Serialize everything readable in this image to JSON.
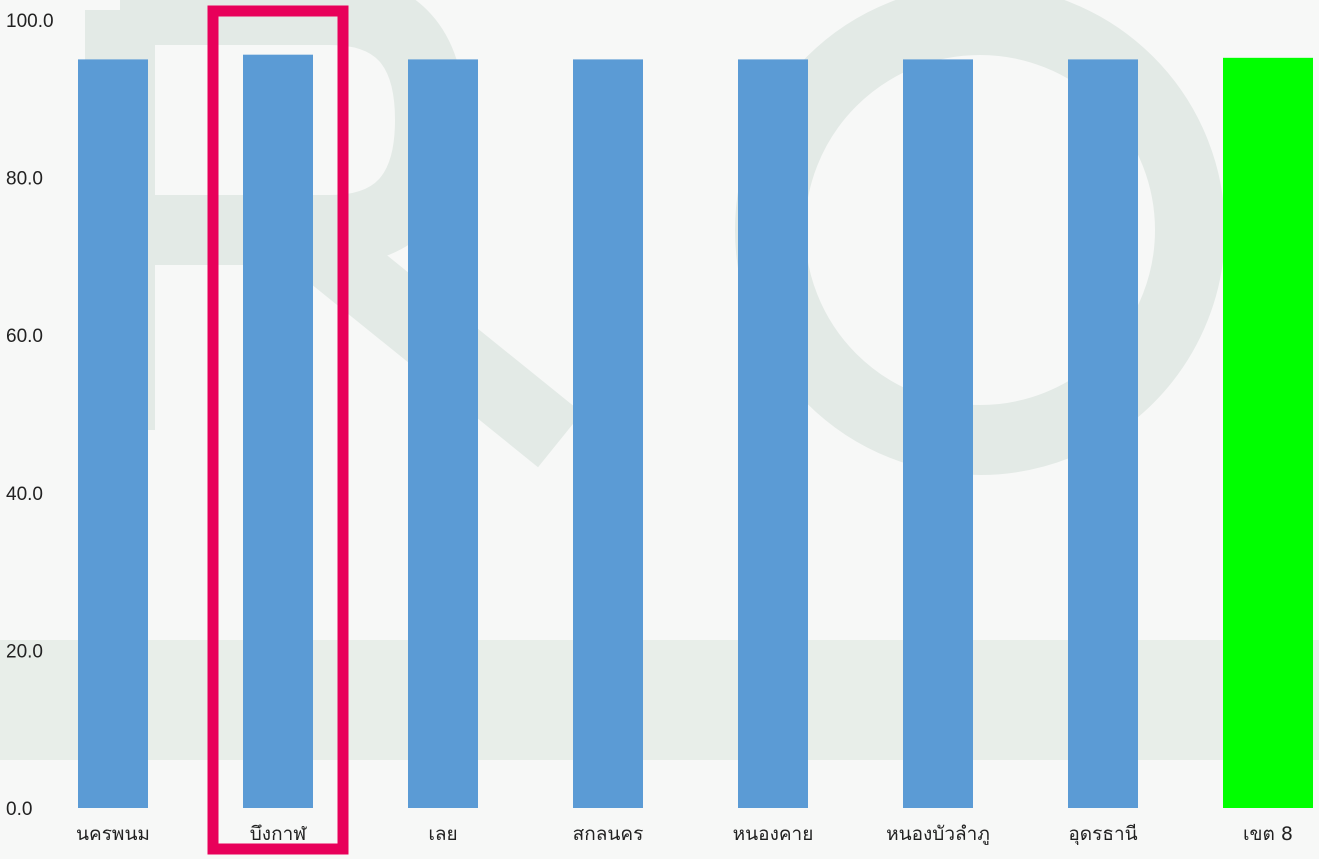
{
  "chart_data": {
    "type": "bar",
    "title": "",
    "xlabel": "",
    "ylabel": "",
    "ylim": [
      0,
      100
    ],
    "yticks": [
      "0.0",
      "20.0",
      "40.0",
      "60.0",
      "80.0",
      "100.0"
    ],
    "ytick_values": [
      0,
      20,
      40,
      60,
      80,
      100
    ],
    "grid": false,
    "legend": "none",
    "categories": [
      "นครพนม",
      "บึงกาฬ",
      "เลย",
      "สกลนคร",
      "หนองคาย",
      "หนองบัวลำภู",
      "อุดรธานี",
      "เขต 8"
    ],
    "values": [
      95.0,
      95.6,
      95.0,
      95.0,
      95.0,
      95.0,
      95.0,
      95.2
    ],
    "bar_colors": [
      "#5b9bd5",
      "#5b9bd5",
      "#5b9bd5",
      "#5b9bd5",
      "#5b9bd5",
      "#5b9bd5",
      "#5b9bd5",
      "#00ff00"
    ],
    "highlight": {
      "category": "บึงกาฬ",
      "color": "#e8005a"
    }
  },
  "watermark": {
    "color": "#dfe7e2"
  }
}
